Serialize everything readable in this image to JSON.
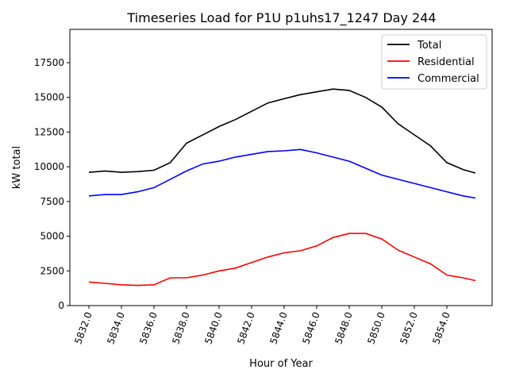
{
  "chart_data": {
    "type": "line",
    "title": "Timeseries Load for P1U p1uhs17_1247  Day 244",
    "xlabel": "Hour of Year",
    "ylabel": "kW total",
    "xlim": [
      5830.83,
      5856.78
    ],
    "ylim": [
      0,
      19900
    ],
    "xticks": [
      5832,
      5834,
      5836,
      5838,
      5840,
      5842,
      5844,
      5846,
      5848,
      5850,
      5852,
      5854
    ],
    "xtick_labels": [
      "5832.0",
      "5834.0",
      "5836.0",
      "5838.0",
      "5840.0",
      "5842.0",
      "5844.0",
      "5846.0",
      "5848.0",
      "5850.0",
      "5852.0",
      "5854.0"
    ],
    "yticks": [
      0,
      2500,
      5000,
      7500,
      10000,
      12500,
      15000,
      17500
    ],
    "ytick_labels": [
      "0",
      "2500",
      "5000",
      "7500",
      "10000",
      "12500",
      "15000",
      "17500"
    ],
    "grid": false,
    "legend_position": "top-right",
    "x": [
      5832,
      5833,
      5834,
      5835,
      5836,
      5837,
      5838,
      5839,
      5840,
      5841,
      5842,
      5843,
      5844,
      5845,
      5846,
      5847,
      5848,
      5849,
      5850,
      5851,
      5852,
      5853,
      5854,
      5855,
      5855.75
    ],
    "series": [
      {
        "name": "Total",
        "color": "#000000",
        "values": [
          9600,
          9700,
          9600,
          9650,
          9750,
          10300,
          11700,
          12300,
          12900,
          13400,
          14000,
          14600,
          14900,
          15200,
          15400,
          15600,
          15500,
          15000,
          14300,
          13100,
          12300,
          11500,
          10300,
          9800,
          9550
        ]
      },
      {
        "name": "Residential",
        "color": "#ff0000",
        "values": [
          1700,
          1600,
          1500,
          1450,
          1500,
          2000,
          2000,
          2200,
          2500,
          2700,
          3100,
          3500,
          3800,
          3950,
          4300,
          4900,
          5200,
          5200,
          4800,
          4000,
          3500,
          3000,
          2200,
          2000,
          1800
        ]
      },
      {
        "name": "Commercial",
        "color": "#0000ff",
        "values": [
          7900,
          8000,
          8000,
          8200,
          8500,
          9100,
          9700,
          10200,
          10400,
          10700,
          10900,
          11100,
          11150,
          11250,
          11000,
          10700,
          10400,
          9900,
          9400,
          9100,
          8800,
          8500,
          8200,
          7900,
          7750
        ]
      }
    ]
  }
}
